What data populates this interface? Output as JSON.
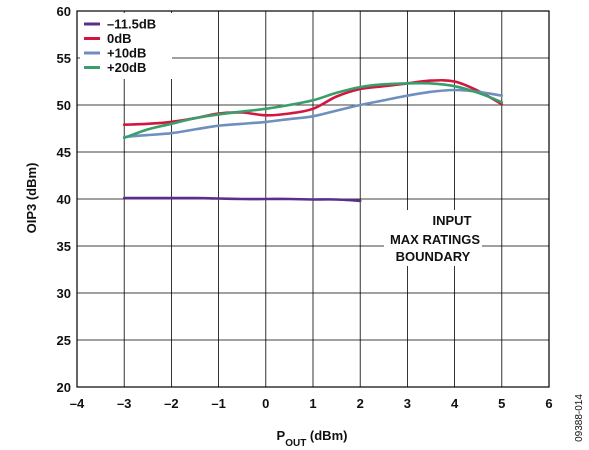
{
  "chart_data": {
    "type": "line",
    "xlabel": "P",
    "xlabel_subscript": "OUT",
    "xlabel_unit": " (dBm)",
    "ylabel": "OIP3 (dBm)",
    "xlim": [
      -4,
      6
    ],
    "ylim": [
      20,
      60
    ],
    "xticks": [
      -4,
      -3,
      -2,
      -1,
      0,
      1,
      2,
      3,
      4,
      5,
      6
    ],
    "yticks": [
      20,
      25,
      30,
      35,
      40,
      45,
      50,
      55,
      60
    ],
    "xtick_labels": [
      "–4",
      "–3",
      "–2",
      "–1",
      "0",
      "1",
      "2",
      "3",
      "4",
      "5",
      "6"
    ],
    "ytick_labels": [
      "20",
      "25",
      "30",
      "35",
      "40",
      "45",
      "50",
      "55",
      "60"
    ],
    "grid": true,
    "legend_position": "top-left",
    "series": [
      {
        "name": "–11.5dB",
        "color": "#5b2d8c",
        "x": [
          -3,
          -2.5,
          -2,
          -1.5,
          -1,
          -0.5,
          0,
          0.5,
          1,
          1.5,
          2
        ],
        "y": [
          40.1,
          40.1,
          40.1,
          40.1,
          40.05,
          40.0,
          40.0,
          40.0,
          39.95,
          39.95,
          39.8
        ]
      },
      {
        "name": "0dB",
        "color": "#d3163f",
        "x": [
          -3,
          -2.5,
          -2,
          -1.5,
          -1,
          -0.5,
          0,
          0.5,
          1,
          1.5,
          2,
          2.5,
          3,
          3.5,
          4,
          4.5,
          5
        ],
        "y": [
          47.9,
          48.0,
          48.2,
          48.6,
          49.1,
          49.2,
          48.9,
          49.1,
          49.6,
          50.9,
          51.7,
          52.0,
          52.3,
          52.6,
          52.5,
          51.5,
          50.1
        ]
      },
      {
        "name": "+10dB",
        "color": "#6f8fbf",
        "x": [
          -3,
          -2.5,
          -2,
          -1.5,
          -1,
          -0.5,
          0,
          0.5,
          1,
          1.5,
          2,
          2.5,
          3,
          3.5,
          4,
          4.5,
          5
        ],
        "y": [
          46.6,
          46.8,
          47.0,
          47.4,
          47.8,
          48.0,
          48.2,
          48.5,
          48.8,
          49.4,
          50.0,
          50.5,
          51.0,
          51.4,
          51.6,
          51.4,
          51.0
        ]
      },
      {
        "name": "+20dB",
        "color": "#3a9e6a",
        "x": [
          -3,
          -2.5,
          -2,
          -1.5,
          -1,
          -0.5,
          0,
          0.5,
          1,
          1.5,
          2,
          2.5,
          3,
          3.5,
          4,
          4.5,
          5
        ],
        "y": [
          46.5,
          47.4,
          48.0,
          48.6,
          49.0,
          49.3,
          49.6,
          50.0,
          50.5,
          51.3,
          51.9,
          52.2,
          52.3,
          52.3,
          52.0,
          51.3,
          50.3
        ]
      }
    ],
    "annotation": {
      "lines": [
        "INPUT",
        "MAX RATINGS",
        "BOUNDARY"
      ]
    },
    "figure_id": "09388-014"
  }
}
